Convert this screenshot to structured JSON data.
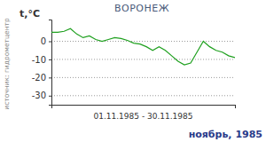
{
  "chart_data": {
    "type": "line",
    "title": "ВОРОНЕЖ",
    "subtitle": "ноябрь, 1985",
    "y_label": "t,°C",
    "x_label": "01.11.1985 - 30.11.1985",
    "annotations": [
      "источник: гидрометцентр"
    ],
    "x": [
      1,
      2,
      3,
      4,
      5,
      6,
      7,
      8,
      9,
      10,
      11,
      12,
      13,
      14,
      15,
      16,
      17,
      18,
      19,
      20,
      21,
      22,
      23,
      24,
      25,
      26,
      27,
      28,
      29,
      30
    ],
    "series": [
      {
        "name": "t",
        "color": "#1fa01f",
        "values": [
          5,
          5,
          5.5,
          7,
          4,
          2,
          3,
          1,
          0,
          1,
          2,
          1.5,
          0.5,
          -1,
          -1.5,
          -3,
          -5,
          -3,
          -5,
          -8,
          -11,
          -13,
          -12,
          -6,
          0,
          -3,
          -5,
          -6,
          -8,
          -9
        ]
      }
    ],
    "xlim": [
      1,
      30
    ],
    "xticks": [
      1,
      30
    ],
    "ylim": [
      -35,
      12
    ],
    "yticks": [
      0,
      -10,
      -20,
      -30
    ],
    "grid": true,
    "tick_labels": "y"
  }
}
